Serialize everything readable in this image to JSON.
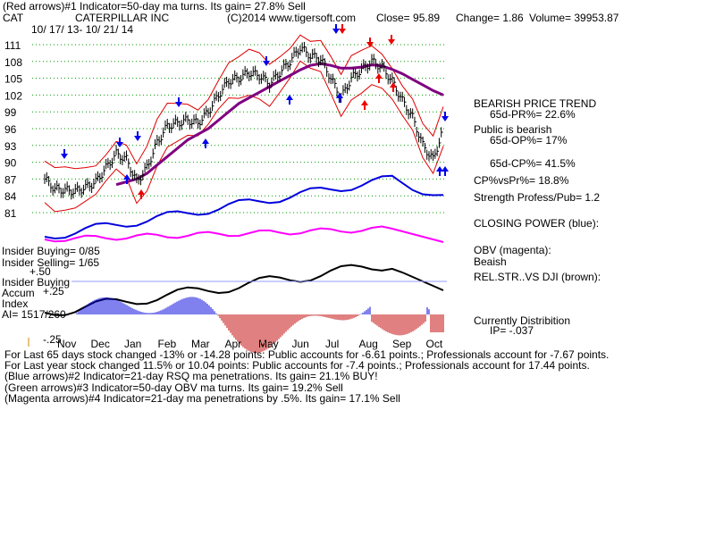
{
  "header": {
    "line1": "(Red arrows)#1 Indicator=50-day ma turns.  Its gain= 27.8% Sell",
    "symbol": "CAT",
    "company": "CATERPILLAR INC",
    "copyright": "(C)2014 www.tigersoft.com",
    "close": "Close=  95.89",
    "change": "Change= 1.86",
    "volume": "Volume=  39953.87",
    "date_range": "10/ 17/ 13-  10/ 21/ 14"
  },
  "right_panel": {
    "trend": "BEARISH PRICE TREND",
    "pr": "65d-PR%= 22.6%",
    "public": "Public is bearish",
    "op": "65d-OP%= 17%",
    "cp": "65d-CP%= 41.5%",
    "cpvspr": "CP%vsPr%=  18.8%",
    "strength": "Strength Profess/Pub= 1.2",
    "closing_power": "CLOSING POWER (blue):",
    "obv": "OBV (magenta):",
    "obv_status": "Beaish",
    "relstr": "REL.STR..VS DJI (brown):",
    "distribution": "Currently Distribition",
    "ip": "IP= -.037"
  },
  "left_labels": {
    "insider_buying": "Insider Buying= 0/85",
    "insider_selling": "Insider Selling= 1/65",
    "plus50": "+.50",
    "insider_buying2": "Insider Buying",
    "accum": "Accum",
    "plus25": "+.25",
    "index": "Index",
    "ai": "AI= 1517/260",
    "minus25": "-.25"
  },
  "footer": {
    "line1": "For Last 65 days stock changed  -13% or -14.28 points:  Public accounts for -6.61 points.;  Professionals account for -7.67 points.",
    "line2": "For Last year stock changed  11.5% or  10.04 points:  Public accounts for -7.4 points.;  Professionals account for  17.44 points.",
    "line3": "(Blue arrows)#2 Indicator=21-day RSQ ma penetrations.  Its gain= 21.1% BUY!",
    "line4": "(Green arrows)#3 Indicator=50-day OBV ma turns.  Its gain= 19.2% Sell",
    "line5": "(Magenta arrows)#4 Indicator=21-day ma penetrations by .5%.  Its gain= 17.1% Sell"
  },
  "colors": {
    "price": "#000000",
    "ma50": "#800080",
    "band": "#e00000",
    "closing_power": "#0000dd",
    "obv": "#ff00ff",
    "accum_pos": "#0000dd",
    "accum_neg": "#c00000",
    "grid": "#009900",
    "red_arrow": "#ee0000",
    "blue_arrow": "#0000ee"
  },
  "chart_data": {
    "type": "line",
    "ylim": [
      81,
      111
    ],
    "price_ticks": [
      81,
      84,
      87,
      90,
      93,
      96,
      99,
      102,
      105,
      108,
      111
    ],
    "months": [
      "Nov",
      "Dec",
      "Jan",
      "Feb",
      "Mar",
      "Apr",
      "May",
      "Jun",
      "Jul",
      "Aug",
      "Sep",
      "Oct"
    ],
    "accum_ticks": [
      "+.50",
      "+.25",
      "-.25"
    ],
    "price": [
      87,
      85.2,
      85,
      84.8,
      85.5,
      86.5,
      89,
      91.5,
      90.5,
      86.5,
      89,
      93.5,
      96.5,
      97,
      97.5,
      97,
      99,
      102,
      104.5,
      105,
      106,
      105.5,
      104,
      106,
      108,
      110.5,
      109,
      108.5,
      105,
      101.5,
      105,
      106.5,
      108,
      107,
      104.5,
      101,
      98,
      93,
      90.5,
      95.9
    ],
    "ma50": [
      null,
      null,
      null,
      null,
      null,
      null,
      null,
      86,
      86.5,
      87,
      88,
      89.5,
      91,
      92.5,
      94,
      95,
      96,
      97.5,
      99,
      100.5,
      101.5,
      102.5,
      103.5,
      104.5,
      105.5,
      106.5,
      107.3,
      107.6,
      107.3,
      106.8,
      106.8,
      107,
      107.4,
      107.2,
      106.6,
      105.8,
      104.8,
      103.8,
      102.8,
      102
    ]
  }
}
